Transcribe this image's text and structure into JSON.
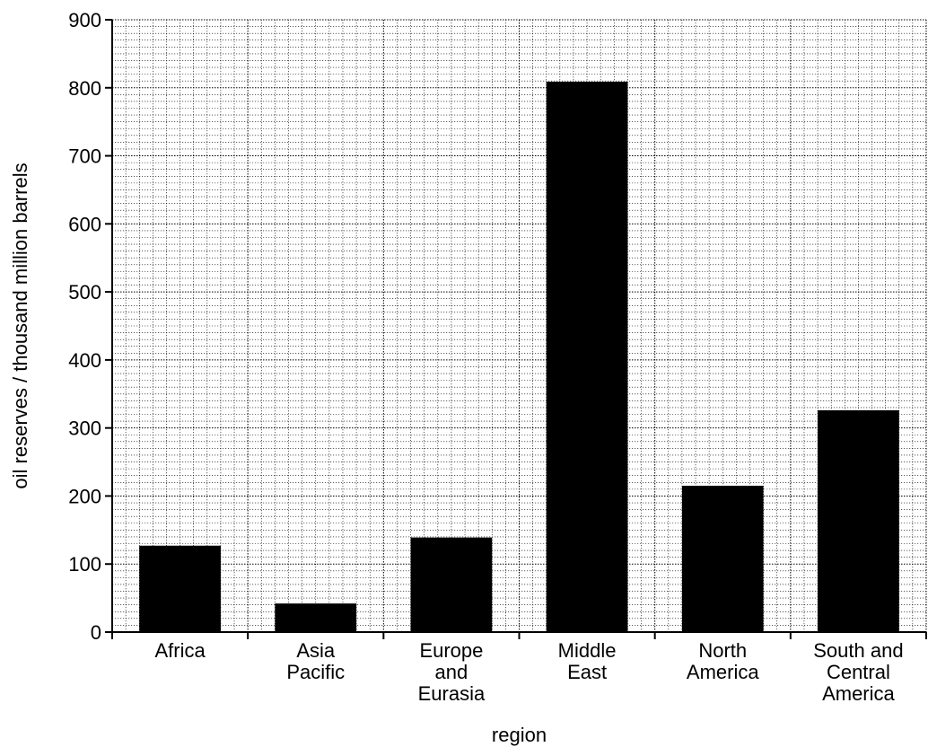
{
  "chart_data": {
    "type": "bar",
    "categories": [
      [
        "Africa"
      ],
      [
        "Asia",
        "Pacific"
      ],
      [
        "Europe",
        "and",
        "Eurasia"
      ],
      [
        "Middle",
        "East"
      ],
      [
        "North",
        "America"
      ],
      [
        "South and",
        "Central",
        "America"
      ]
    ],
    "values": [
      127,
      42,
      139,
      809,
      215,
      326
    ],
    "xlabel": "region",
    "ylabel": "oil reserves / thousand million barrels",
    "ylim": [
      0,
      900
    ],
    "yticks": [
      "0",
      "100",
      "200",
      "300",
      "400",
      "500",
      "600",
      "700",
      "800",
      "900"
    ],
    "grid": true,
    "bar_color": "#000000",
    "grid_color": "#000000"
  }
}
